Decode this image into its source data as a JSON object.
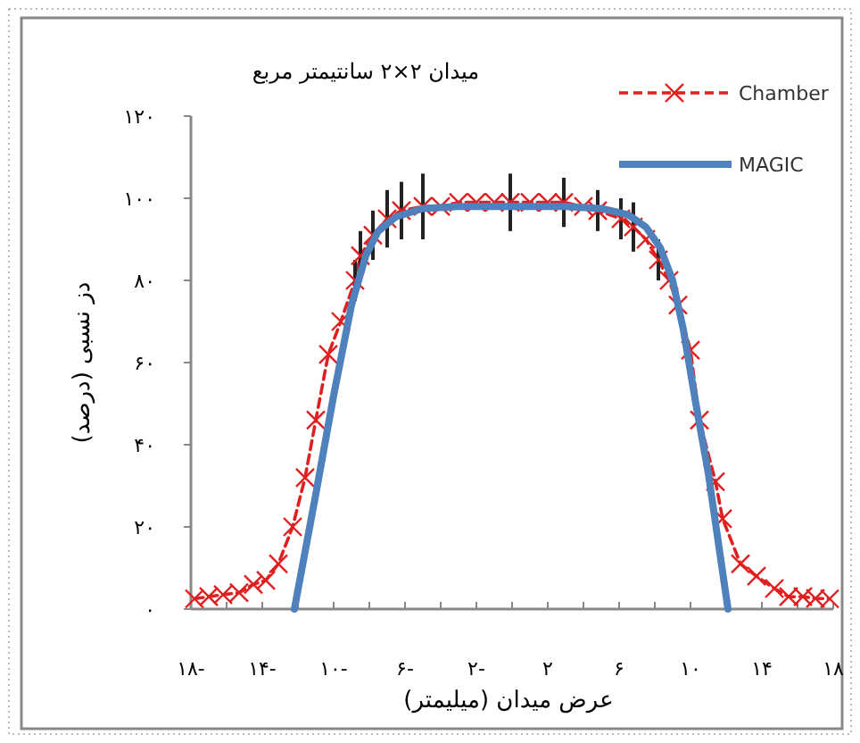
{
  "chart_data": {
    "type": "line",
    "title": "میدان ۲×۲ سانتیمتر مربع",
    "xlabel": "عرض میدان (میلیمتر)",
    "ylabel": "دز نسبی (درصد)",
    "xlim": [
      -18,
      18
    ],
    "ylim": [
      0,
      120
    ],
    "xticks": [
      {
        "value": -18,
        "label": "۱۸-"
      },
      {
        "value": -16,
        "label": null
      },
      {
        "value": -14,
        "label": "۱۴-"
      },
      {
        "value": -12,
        "label": null
      },
      {
        "value": -10,
        "label": "۱۰-"
      },
      {
        "value": -8,
        "label": null
      },
      {
        "value": -6,
        "label": "۶-"
      },
      {
        "value": -4,
        "label": null
      },
      {
        "value": -2,
        "label": "۲-"
      },
      {
        "value": 0,
        "label": null
      },
      {
        "value": 2,
        "label": "۲"
      },
      {
        "value": 4,
        "label": null
      },
      {
        "value": 6,
        "label": "۶"
      },
      {
        "value": 8,
        "label": null
      },
      {
        "value": 10,
        "label": "۱۰"
      },
      {
        "value": 12,
        "label": null
      },
      {
        "value": 14,
        "label": "۱۴"
      },
      {
        "value": 16,
        "label": null
      },
      {
        "value": 18,
        "label": "۱۸"
      }
    ],
    "yticks": [
      {
        "value": 0,
        "label": "۰"
      },
      {
        "value": 20,
        "label": "۲۰"
      },
      {
        "value": 40,
        "label": "۴۰"
      },
      {
        "value": 60,
        "label": "۶۰"
      },
      {
        "value": 80,
        "label": "۸۰"
      },
      {
        "value": 100,
        "label": "۱۰۰"
      },
      {
        "value": 120,
        "label": "۱۲۰"
      }
    ],
    "legend": "top right",
    "grid": false,
    "series": [
      {
        "name": "Chamber",
        "color": "#e02020",
        "marker": "cross",
        "line_style": "dashed",
        "x": [
          -17.8,
          -17,
          -16.2,
          -15.3,
          -14.5,
          -13.8,
          -13.1,
          -12.3,
          -11.6,
          -11,
          -10.3,
          -9.6,
          -8.8,
          -8.5,
          -7.8,
          -7,
          -6.2,
          -5,
          -4,
          -3,
          -2,
          -1,
          -0.1,
          1,
          2,
          2.9,
          4,
          4.8,
          6.1,
          6.8,
          7.5,
          8.2,
          8.8,
          9.3,
          10,
          10.5,
          11.4,
          11.8,
          12.8,
          13.7,
          14.7,
          15.5,
          16.3,
          17,
          17.8
        ],
        "values": [
          2.5,
          3,
          3.5,
          4,
          6,
          7,
          11,
          20,
          32,
          46,
          62,
          70,
          80,
          86,
          91,
          95,
          97,
          98,
          98,
          99,
          99,
          99,
          99,
          99,
          99,
          99,
          98,
          97,
          95,
          93,
          90,
          85,
          80,
          74,
          63,
          46,
          31,
          22,
          11,
          8,
          5,
          3,
          3,
          2.6,
          2.5
        ],
        "errors": [
          null,
          null,
          null,
          null,
          null,
          null,
          null,
          null,
          null,
          null,
          null,
          null,
          5,
          6,
          6,
          7,
          7,
          8,
          null,
          null,
          null,
          null,
          7,
          null,
          null,
          6,
          null,
          5,
          5,
          6,
          null,
          5,
          null,
          null,
          null,
          null,
          null,
          null,
          null,
          null,
          null,
          null,
          null,
          null,
          null
        ]
      },
      {
        "name": "MAGIC",
        "color": "#4f81bd",
        "marker": "none",
        "line_style": "solid",
        "x": [
          -12.2,
          -11,
          -10,
          -9,
          -8.2,
          -7.5,
          -6.5,
          -5,
          -3,
          0,
          3,
          5,
          6.5,
          7.5,
          8.3,
          9,
          9.6,
          10.3,
          11,
          12.1
        ],
        "values": [
          0,
          28,
          52,
          74,
          86,
          92,
          95.5,
          97.5,
          98,
          98,
          98,
          97.5,
          96,
          93,
          88,
          80,
          68,
          50,
          33,
          0
        ]
      }
    ]
  }
}
